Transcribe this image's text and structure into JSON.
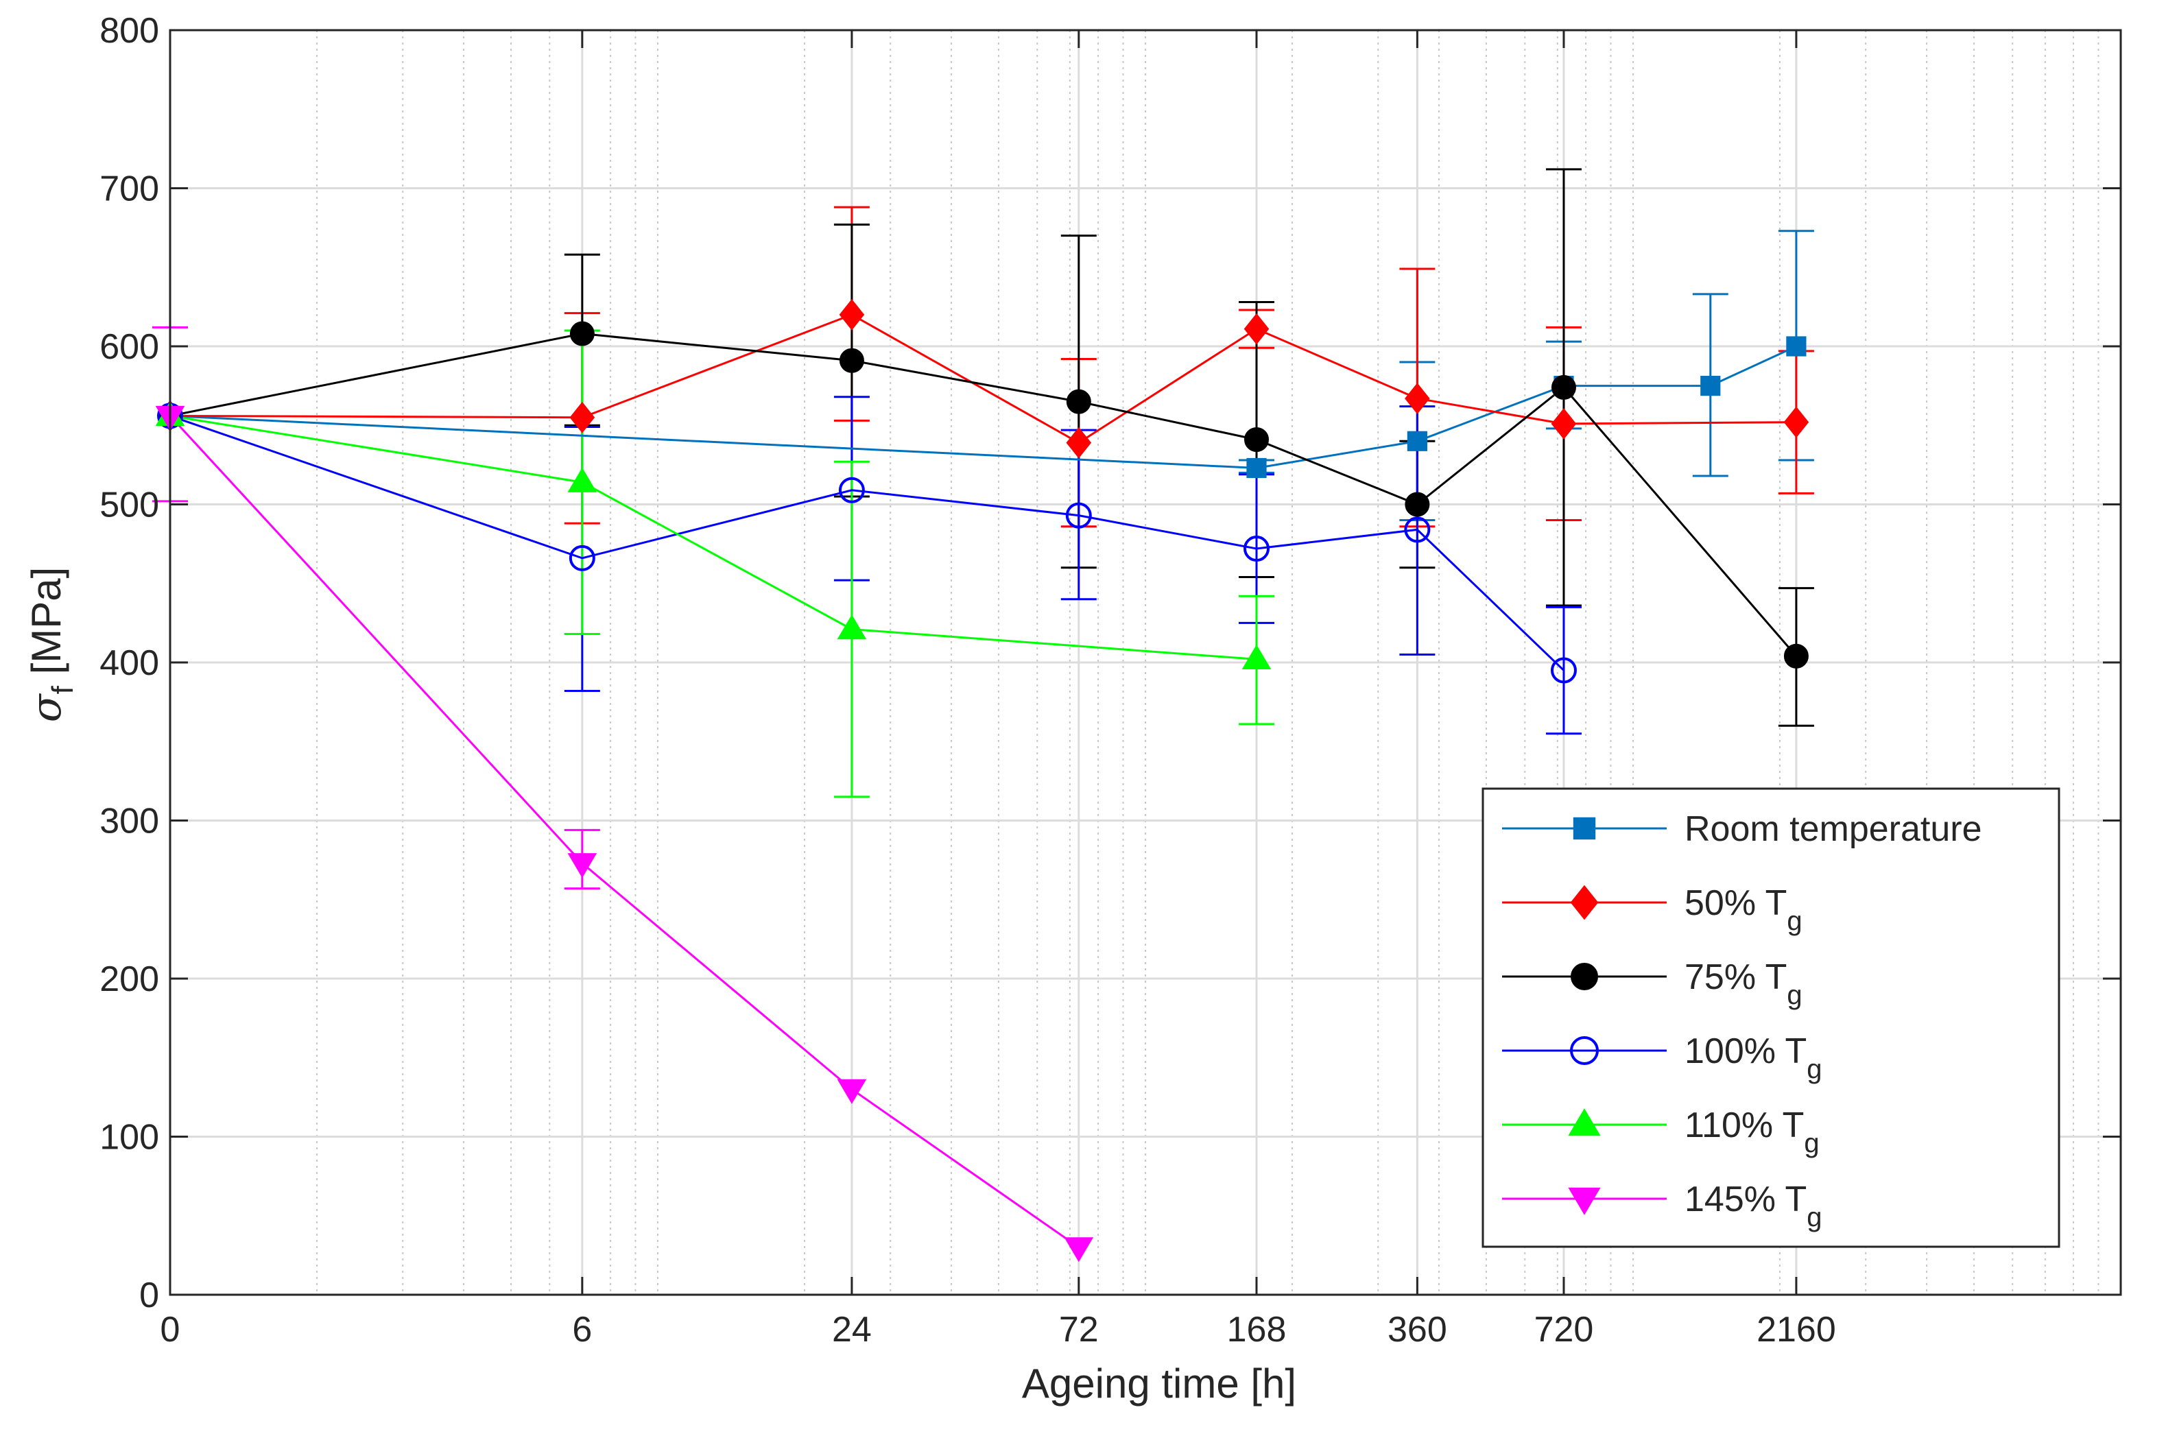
{
  "chart_data": {
    "type": "line",
    "title": "",
    "xlabel": "Ageing time [h]",
    "ylabel": {
      "symbol": "σ",
      "subscript": "f",
      "unit": " [MPa]"
    },
    "x_scale": "log(1 + t)",
    "x_ticks": [
      0,
      6,
      24,
      72,
      168,
      360,
      720,
      2160
    ],
    "x_tick_labels": [
      "0",
      "6",
      "24",
      "72",
      "168",
      "360",
      "720",
      "2160"
    ],
    "xlim": [
      0,
      10000
    ],
    "ylim": [
      0,
      800
    ],
    "y_ticks": [
      0,
      100,
      200,
      300,
      400,
      500,
      600,
      700,
      800
    ],
    "y_tick_labels": [
      "0",
      "100",
      "200",
      "300",
      "400",
      "500",
      "600",
      "700",
      "800"
    ],
    "grid": true,
    "minor_grid": true,
    "legend_position": "bottom-right",
    "series": [
      {
        "name": "Room temperature",
        "label_main": "Room temperature",
        "label_sub": "",
        "color": "#0072BD",
        "marker": "square",
        "filled": true,
        "x": [
          0,
          168,
          360,
          720,
          1440,
          2160
        ],
        "y": [
          556,
          523,
          540,
          575,
          575,
          600
        ],
        "err_low": [
          null,
          520,
          490,
          548,
          518,
          528
        ],
        "err_high": [
          null,
          528,
          590,
          603,
          633,
          673
        ]
      },
      {
        "name": "50% Tg",
        "label_main": "50% T",
        "label_sub": "g",
        "color": "#FF0000",
        "marker": "diamond",
        "filled": true,
        "x": [
          0,
          6,
          24,
          72,
          168,
          360,
          720,
          2160
        ],
        "y": [
          556,
          555,
          620,
          539,
          611,
          567,
          551,
          552
        ],
        "err_low": [
          null,
          488,
          553,
          486,
          599,
          486,
          490,
          507
        ],
        "err_high": [
          null,
          621,
          688,
          592,
          623,
          649,
          612,
          597
        ]
      },
      {
        "name": "75% Tg",
        "label_main": "75% T",
        "label_sub": "g",
        "color": "#000000",
        "marker": "circle",
        "filled": true,
        "x": [
          0,
          6,
          24,
          72,
          168,
          360,
          720,
          2160
        ],
        "y": [
          556,
          608,
          591,
          565,
          541,
          500,
          574,
          404
        ],
        "err_low": [
          null,
          550,
          505,
          460,
          454,
          460,
          436,
          360
        ],
        "err_high": [
          null,
          658,
          677,
          670,
          628,
          540,
          712,
          447
        ]
      },
      {
        "name": "100% Tg",
        "label_main": "100% T",
        "label_sub": "g",
        "color": "#0000FF",
        "marker": "circle",
        "filled": false,
        "x": [
          0,
          6,
          24,
          72,
          168,
          360,
          720
        ],
        "y": [
          556,
          466,
          509,
          493,
          472,
          484,
          395
        ],
        "err_low": [
          null,
          382,
          452,
          440,
          425,
          405,
          355
        ],
        "err_high": [
          null,
          549,
          568,
          547,
          519,
          562,
          435
        ]
      },
      {
        "name": "110% Tg",
        "label_main": "110% T",
        "label_sub": "g",
        "color": "#00FF00",
        "marker": "triangle-up",
        "filled": true,
        "x": [
          0,
          6,
          24,
          168
        ],
        "y": [
          556,
          514,
          421,
          402
        ],
        "err_low": [
          null,
          418,
          315,
          361
        ],
        "err_high": [
          null,
          610,
          527,
          442
        ]
      },
      {
        "name": "145% Tg",
        "label_main": "145% T",
        "label_sub": "g",
        "color": "#FF00FF",
        "marker": "triangle-down",
        "filled": true,
        "x": [
          0,
          6,
          24,
          72
        ],
        "y": [
          556,
          273,
          130,
          30
        ],
        "err_low": [
          502,
          257,
          null,
          null
        ],
        "err_high": [
          612,
          294,
          null,
          null
        ]
      }
    ]
  }
}
